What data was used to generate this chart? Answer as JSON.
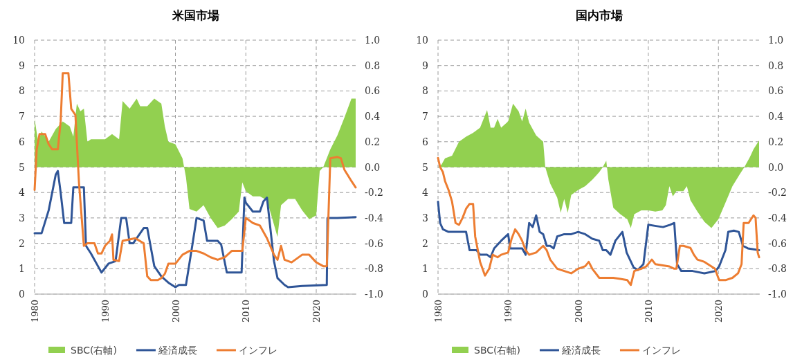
{
  "chart_data": [
    {
      "type": "line",
      "title": "米国市場",
      "xlim": [
        1980,
        2025.7
      ],
      "xticks": [
        1980,
        1990,
        2000,
        2010,
        2020
      ],
      "ylim": [
        0,
        10
      ],
      "yticks": [
        0,
        1,
        2,
        3,
        4,
        5,
        6,
        7,
        8,
        9,
        10
      ],
      "y2lim": [
        -1,
        1
      ],
      "y2ticks": [
        {
          "value": -1,
          "label": "-1.0"
        },
        {
          "value": -0.8,
          "label": "-0.8"
        },
        {
          "value": -0.6,
          "label": "-0.6"
        },
        {
          "value": -0.4,
          "label": "-0.4"
        },
        {
          "value": -0.2,
          "label": "-0.2"
        },
        {
          "value": 0,
          "label": "0.0"
        },
        {
          "value": 0.2,
          "label": "0.2"
        },
        {
          "value": 0.4,
          "label": "0.4"
        },
        {
          "value": 0.6,
          "label": "0.6"
        },
        {
          "value": 0.8,
          "label": "0.8"
        },
        {
          "value": 1,
          "label": "1.0"
        }
      ],
      "grid": true,
      "legend": "bottom",
      "series": [
        {
          "name": "SBC(右軸)",
          "type": "area",
          "axis": "y2",
          "color": "#92d050",
          "x": [
            1980,
            1980.5,
            1981,
            1982,
            1983,
            1984,
            1985,
            1985.5,
            1986,
            1986.5,
            1987,
            1987.5,
            1988,
            1990,
            1991,
            1992,
            1992.5,
            1993.5,
            1994.5,
            1995,
            1996,
            1997,
            1998,
            1998.5,
            1999,
            2000,
            2001,
            2001.5,
            2002,
            2003,
            2004,
            2005,
            2006,
            2007,
            2008,
            2009,
            2009.5,
            2010,
            2011,
            2012,
            2013,
            2014.5,
            2015,
            2016,
            2017,
            2018,
            2019,
            2020,
            2020.5,
            2021,
            2022,
            2023,
            2024,
            2025,
            2025.6
          ],
          "values": [
            0.38,
            0.2,
            0.28,
            0.2,
            0.3,
            0.36,
            0.32,
            0.24,
            0.5,
            0.44,
            0.46,
            0.2,
            0.22,
            0.22,
            0.26,
            0.22,
            0.52,
            0.46,
            0.54,
            0.48,
            0.48,
            0.54,
            0.5,
            0.32,
            0.2,
            0.18,
            0.07,
            -0.08,
            -0.33,
            -0.35,
            -0.3,
            -0.4,
            -0.48,
            -0.46,
            -0.41,
            -0.35,
            -0.12,
            -0.19,
            -0.23,
            -0.23,
            -0.26,
            -0.55,
            -0.3,
            -0.25,
            -0.25,
            -0.34,
            -0.41,
            -0.38,
            -0.03,
            0,
            0.14,
            0.25,
            0.39,
            0.54,
            0.54
          ]
        },
        {
          "name": "経済成長",
          "color": "#2f5597",
          "x": [
            1980,
            1981,
            1982,
            1983,
            1983.3,
            1983.7,
            1984.2,
            1985.2,
            1985.5,
            1987,
            1987.3,
            1988,
            1989,
            1989.5,
            1990.5,
            1991.5,
            1992.3,
            1993,
            1993.5,
            1994,
            1995.5,
            1996,
            1997,
            1998,
            1999,
            2000,
            2000.5,
            2001.5,
            2002.5,
            2003,
            2004,
            2004.5,
            2006,
            2006.5,
            2007.3,
            2009.4,
            2009.8,
            2010,
            2011,
            2012,
            2012.5,
            2013,
            2014,
            2014.5,
            2015.5,
            2016,
            2018,
            2021.5,
            2021.6,
            2023,
            2025.6
          ],
          "values": [
            2.4,
            2.4,
            3.3,
            4.7,
            4.85,
            4.0,
            2.8,
            2.8,
            4.2,
            4.2,
            1.9,
            1.6,
            1.1,
            0.85,
            1.2,
            1.3,
            3.0,
            3.0,
            2.0,
            2.0,
            2.6,
            2.6,
            1.1,
            0.7,
            0.45,
            0.27,
            0.36,
            0.36,
            2.1,
            3.0,
            2.9,
            2.1,
            2.1,
            1.95,
            0.85,
            0.85,
            3.8,
            3.6,
            3.25,
            3.25,
            3.65,
            3.8,
            1.3,
            0.63,
            0.36,
            0.27,
            0.32,
            0.36,
            3.0,
            3.0,
            3.03
          ]
        },
        {
          "name": "インフレ",
          "color": "#ed7d31",
          "x": [
            1980,
            1980.3,
            1980.7,
            1981.5,
            1982,
            1982.5,
            1983.3,
            1983.7,
            1984,
            1984.8,
            1985.2,
            1985.8,
            1986.3,
            1987,
            1987.5,
            1988.5,
            1989,
            1989.5,
            1990,
            1990.7,
            1991,
            1991.2,
            1992,
            1992.5,
            1994.3,
            1995.5,
            1996,
            1996.5,
            1997.5,
            1998,
            1998.5,
            1999,
            2000,
            2001,
            2002,
            2003,
            2004,
            2005,
            2006,
            2007,
            2008,
            2009.5,
            2010,
            2011,
            2012,
            2013,
            2014,
            2014.5,
            2015,
            2015.5,
            2016.5,
            2018,
            2019,
            2020,
            2021,
            2021.5,
            2022,
            2023,
            2023.5,
            2024,
            2025,
            2025.6
          ],
          "values": [
            4.1,
            5.7,
            6.3,
            6.3,
            5.9,
            5.7,
            5.7,
            6.8,
            8.7,
            8.7,
            7.3,
            7.05,
            4.4,
            1.9,
            2.0,
            2.0,
            1.6,
            1.6,
            1.9,
            2.1,
            2.35,
            1.35,
            1.3,
            2.1,
            2.2,
            2.0,
            0.7,
            0.55,
            0.55,
            0.63,
            0.8,
            1.2,
            1.2,
            1.55,
            1.7,
            1.7,
            1.6,
            1.45,
            1.35,
            1.45,
            1.7,
            1.7,
            3.0,
            2.8,
            2.7,
            2.2,
            1.55,
            1.35,
            1.9,
            1.35,
            1.25,
            1.55,
            1.55,
            1.25,
            1.1,
            1.1,
            5.35,
            5.4,
            5.35,
            4.9,
            4.45,
            4.2
          ]
        }
      ]
    },
    {
      "type": "line",
      "title": "国内市場",
      "xlim": [
        1980,
        2025.9
      ],
      "xticks": [
        1980,
        1990,
        2000,
        2010,
        2020
      ],
      "ylim": [
        0,
        10
      ],
      "yticks": [
        0,
        1,
        2,
        3,
        4,
        5,
        6,
        7,
        8,
        9,
        10
      ],
      "y2lim": [
        -1,
        1
      ],
      "y2ticks": [
        {
          "value": -1,
          "label": "-1.0"
        },
        {
          "value": -0.8,
          "label": "-0.8"
        },
        {
          "value": -0.6,
          "label": "-0.6"
        },
        {
          "value": -0.4,
          "label": "-0.4"
        },
        {
          "value": -0.2,
          "label": "-0.2"
        },
        {
          "value": 0,
          "label": "0.0"
        },
        {
          "value": 0.2,
          "label": "0.2"
        },
        {
          "value": 0.4,
          "label": "0.4"
        },
        {
          "value": 0.6,
          "label": "0.6"
        },
        {
          "value": 0.8,
          "label": "0.8"
        },
        {
          "value": 1,
          "label": "1.0"
        }
      ],
      "grid": true,
      "legend": "bottom",
      "series": [
        {
          "name": "SBC(右軸)",
          "type": "area",
          "axis": "y2",
          "color": "#92d050",
          "x": [
            1980,
            1980.5,
            1981,
            1982,
            1983,
            1984,
            1985,
            1986,
            1986.5,
            1987,
            1987.5,
            1988,
            1988.5,
            1989,
            1990,
            1990.7,
            1991.5,
            1992,
            1992.5,
            1993,
            1994,
            1995,
            1995.3,
            1996,
            1997,
            1997.5,
            1998,
            1998.5,
            1999,
            2000,
            2001,
            2002,
            2003,
            2003.5,
            2004,
            2004.3,
            2005,
            2006,
            2007,
            2007.5,
            2008,
            2009,
            2010,
            2011,
            2012,
            2012.5,
            2013,
            2013.5,
            2014,
            2015,
            2015.5,
            2016,
            2017,
            2018,
            2019,
            2020,
            2021,
            2022,
            2023,
            2023.7,
            2024.5,
            2025,
            2025.8
          ],
          "values": [
            0,
            0.02,
            0.07,
            0.09,
            0.2,
            0.24,
            0.27,
            0.31,
            0.38,
            0.45,
            0.31,
            0.31,
            0.38,
            0.31,
            0.36,
            0.5,
            0.44,
            0.36,
            0.46,
            0.35,
            0.25,
            0.2,
            0,
            -0.13,
            -0.24,
            -0.36,
            -0.25,
            -0.36,
            -0.22,
            -0.18,
            -0.15,
            -0.1,
            -0.04,
            0,
            0.05,
            -0.1,
            -0.32,
            -0.37,
            -0.41,
            -0.48,
            -0.37,
            -0.34,
            -0.34,
            -0.35,
            -0.34,
            -0.3,
            -0.15,
            -0.23,
            -0.19,
            -0.19,
            -0.15,
            -0.26,
            -0.35,
            -0.43,
            -0.48,
            -0.41,
            -0.28,
            -0.15,
            -0.06,
            0,
            0.08,
            0.14,
            0.21
          ]
        },
        {
          "name": "経済成長",
          "color": "#2f5597",
          "x": [
            1980,
            1980.3,
            1980.7,
            1981.5,
            1984,
            1984.5,
            1985.5,
            1986,
            1987,
            1987.5,
            1988,
            1989,
            1990,
            1990.3,
            1992,
            1992.5,
            1993,
            1993.5,
            1994,
            1994.5,
            1995,
            1995.5,
            1996,
            1996.5,
            1997,
            1998,
            1999,
            2000,
            2001,
            2002,
            2003,
            2003.5,
            2004,
            2004.6,
            2005.3,
            2006.3,
            2006.9,
            2007.9,
            2008.5,
            2009.3,
            2010,
            2011.1,
            2012.1,
            2013.1,
            2013.7,
            2014.1,
            2014.7,
            2016.3,
            2018,
            2019.6,
            2020.1,
            2021,
            2021.4,
            2022.2,
            2022.9,
            2023.5,
            2024.2,
            2025.8
          ],
          "values": [
            3.64,
            2.8,
            2.55,
            2.45,
            2.45,
            1.73,
            1.73,
            1.55,
            1.55,
            1.45,
            1.8,
            2.1,
            2.36,
            1.8,
            1.8,
            1.55,
            2.8,
            2.64,
            3.1,
            2.45,
            2.36,
            1.9,
            1.9,
            1.8,
            2.27,
            2.36,
            2.36,
            2.45,
            2.36,
            2.18,
            2.1,
            1.73,
            1.73,
            1.55,
            2.1,
            2.45,
            1.64,
            1.05,
            0.95,
            1.18,
            2.73,
            2.68,
            2.64,
            2.73,
            2.8,
            1.18,
            0.91,
            0.91,
            0.82,
            0.91,
            1.09,
            1.73,
            2.45,
            2.5,
            2.45,
            1.9,
            1.8,
            1.73
          ]
        },
        {
          "name": "インフレ",
          "color": "#ed7d31",
          "x": [
            1980,
            1980.3,
            1980.7,
            1981,
            1981.5,
            1982,
            1982.5,
            1983,
            1983.5,
            1984,
            1984.5,
            1985,
            1985.3,
            1986,
            1986.7,
            1987.3,
            1987.8,
            1988.5,
            1989,
            1990,
            1990.5,
            1991,
            1991.5,
            1992,
            1992.5,
            1993,
            1994,
            1995,
            1995.5,
            1996,
            1997,
            1998,
            1999,
            2000,
            2001,
            2001.5,
            2002,
            2003,
            2005,
            2006,
            2007,
            2007.5,
            2008,
            2009,
            2009.7,
            2010.5,
            2011,
            2013,
            2013.7,
            2014,
            2014.5,
            2015,
            2016,
            2016.5,
            2017,
            2018,
            2019.5,
            2020.1,
            2021,
            2022,
            2022.8,
            2023.3,
            2023.6,
            2024.3,
            2025,
            2025.3,
            2025.6,
            2025.8
          ],
          "values": [
            5.36,
            5.0,
            4.8,
            4.45,
            4.1,
            3.64,
            2.8,
            2.73,
            3.0,
            3.36,
            3.55,
            3.55,
            2.27,
            1.27,
            0.73,
            1.0,
            1.55,
            1.45,
            1.55,
            1.64,
            2.18,
            2.55,
            2.36,
            2.1,
            1.73,
            1.55,
            1.64,
            1.9,
            1.73,
            1.36,
            1.0,
            0.91,
            0.82,
            1.0,
            1.1,
            1.27,
            1.0,
            0.64,
            0.64,
            0.6,
            0.55,
            0.36,
            0.91,
            1.0,
            1.09,
            1.36,
            1.18,
            1.09,
            1.0,
            1.0,
            1.9,
            1.9,
            1.82,
            1.55,
            1.36,
            1.27,
            1.0,
            0.55,
            0.55,
            0.64,
            0.82,
            1.18,
            2.8,
            2.8,
            3.1,
            3.0,
            1.64,
            1.45
          ]
        }
      ]
    }
  ]
}
